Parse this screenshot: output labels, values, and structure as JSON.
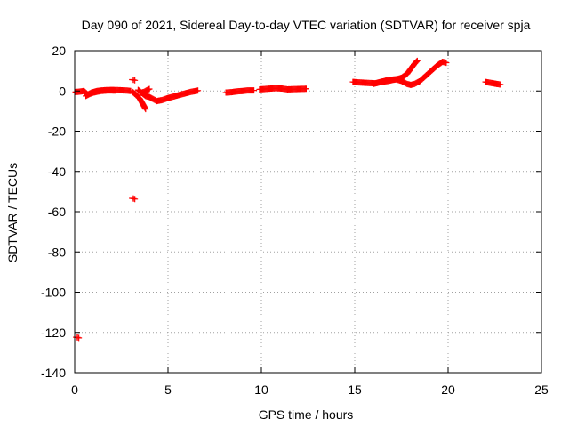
{
  "chart_data": {
    "type": "scatter",
    "title": "Day 090 of 2021, Sidereal Day-to-day VTEC variation (SDTVAR) for receiver spja",
    "xlabel": "GPS time / hours",
    "ylabel": "SDTVAR / TECUs",
    "xlim": [
      0,
      25
    ],
    "ylim": [
      -140,
      20
    ],
    "xticks": [
      "0",
      "5",
      "10",
      "15",
      "20",
      "25"
    ],
    "yticks": [
      "20",
      "0",
      "-20",
      "-40",
      "-60",
      "-80",
      "-100",
      "-120",
      "-140"
    ],
    "xtick_values": [
      0,
      5,
      10,
      15,
      20,
      25
    ],
    "ytick_values": [
      20,
      0,
      -20,
      -40,
      -60,
      -80,
      -100,
      -120,
      -140
    ],
    "grid": true,
    "marker": "+",
    "color": "#ff0000",
    "segments": [
      [
        [
          0.05,
          -0.5
        ],
        [
          0.3,
          -0.3
        ],
        [
          0.5,
          0.0
        ],
        [
          0.7,
          -1.8
        ],
        [
          0.9,
          -0.8
        ],
        [
          1.2,
          0.0
        ],
        [
          1.6,
          0.4
        ],
        [
          2.0,
          0.5
        ],
        [
          2.4,
          0.4
        ],
        [
          2.8,
          0.2
        ],
        [
          3.0,
          0.0
        ]
      ],
      [
        [
          0.6,
          -2.5
        ],
        [
          0.8,
          -1.5
        ],
        [
          1.0,
          -0.8
        ],
        [
          1.4,
          0.0
        ],
        [
          1.8,
          0.3
        ],
        [
          2.2,
          0.2
        ]
      ],
      [
        [
          3.1,
          -0.5
        ],
        [
          3.3,
          -2.0
        ],
        [
          3.5,
          -4.0
        ],
        [
          3.65,
          -6.5
        ],
        [
          3.8,
          -9.0
        ]
      ],
      [
        [
          3.4,
          0.5
        ],
        [
          3.6,
          -1.0
        ],
        [
          3.8,
          -2.5
        ],
        [
          4.0,
          -3.0
        ],
        [
          4.2,
          -4.0
        ],
        [
          4.4,
          -5.0
        ],
        [
          4.7,
          -4.5
        ],
        [
          5.0,
          -3.5
        ],
        [
          5.4,
          -2.5
        ],
        [
          5.8,
          -1.5
        ],
        [
          6.2,
          -0.5
        ],
        [
          6.6,
          0.2
        ]
      ],
      [
        [
          3.5,
          -1.0
        ],
        [
          3.7,
          -0.5
        ],
        [
          3.9,
          0.5
        ],
        [
          4.0,
          1.0
        ]
      ],
      [
        [
          8.1,
          -0.8
        ],
        [
          8.4,
          -0.6
        ],
        [
          8.7,
          -0.2
        ],
        [
          9.0,
          0.0
        ],
        [
          9.3,
          0.3
        ],
        [
          9.6,
          0.3
        ]
      ],
      [
        [
          9.9,
          0.8
        ],
        [
          10.2,
          1.0
        ],
        [
          10.5,
          1.2
        ],
        [
          10.8,
          1.4
        ],
        [
          11.1,
          1.2
        ],
        [
          11.4,
          0.8
        ],
        [
          11.7,
          0.9
        ],
        [
          12.0,
          1.0
        ],
        [
          12.4,
          1.1
        ]
      ],
      [
        [
          14.9,
          4.5
        ],
        [
          15.3,
          4.2
        ],
        [
          15.7,
          4.0
        ],
        [
          16.1,
          3.8
        ],
        [
          16.4,
          4.5
        ],
        [
          16.8,
          5.5
        ],
        [
          17.2,
          5.8
        ],
        [
          17.5,
          5.0
        ],
        [
          17.8,
          3.5
        ],
        [
          18.0,
          3.0
        ],
        [
          18.2,
          3.5
        ],
        [
          18.5,
          5.0
        ],
        [
          18.8,
          7.5
        ],
        [
          19.1,
          10.0
        ],
        [
          19.4,
          12.5
        ],
        [
          19.7,
          14.5
        ],
        [
          19.9,
          14.0
        ]
      ],
      [
        [
          16.0,
          3.5
        ],
        [
          16.4,
          4.5
        ],
        [
          16.8,
          5.0
        ],
        [
          17.2,
          5.8
        ],
        [
          17.5,
          6.5
        ],
        [
          17.8,
          8.5
        ],
        [
          18.0,
          11.0
        ],
        [
          18.2,
          13.5
        ],
        [
          18.35,
          15.0
        ]
      ],
      [
        [
          22.0,
          4.5
        ],
        [
          22.3,
          4.0
        ],
        [
          22.6,
          3.5
        ],
        [
          22.8,
          3.2
        ]
      ]
    ],
    "outliers": [
      [
        3.15,
        5.5
      ],
      [
        3.15,
        -53.5
      ],
      [
        0.15,
        -122.5
      ]
    ]
  }
}
